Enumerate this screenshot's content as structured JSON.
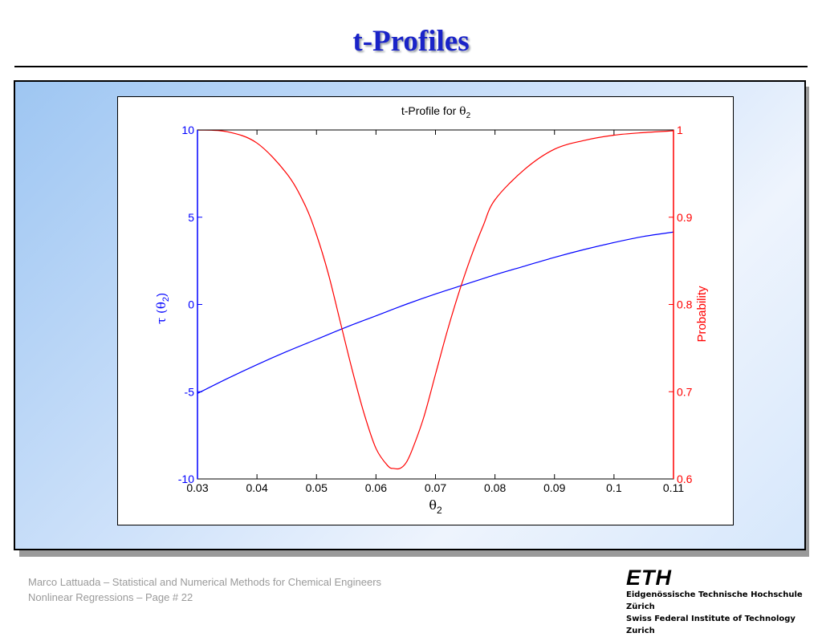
{
  "slide": {
    "title": "t-Profiles",
    "footer_line1": "Marco Lattuada – Statistical and Numerical Methods for Chemical Engineers",
    "footer_line2": "Nonlinear Regressions – Page #  22",
    "logo": {
      "mark": "ETH",
      "line1": "Eidgenössische Technische Hochschule Zürich",
      "line2": "Swiss Federal Institute of Technology Zurich"
    }
  },
  "colors": {
    "title": "#1a23c8",
    "left_axis": "#0000ff",
    "right_axis": "#ff0000"
  },
  "chart_data": {
    "type": "line",
    "title": {
      "text": "t-Profile for ",
      "symbol": "θ",
      "sub": "2"
    },
    "xlabel": {
      "symbol": "θ",
      "sub": "2"
    },
    "ylabel_left": {
      "prefix": "τ (",
      "symbol": "θ",
      "sub": "2",
      "suffix": ")"
    },
    "ylabel_right": "Probability",
    "xlim": [
      0.03,
      0.11
    ],
    "ylim_left": [
      -10,
      10
    ],
    "ylim_right": [
      0.6,
      1
    ],
    "x_ticks": [
      0.03,
      0.04,
      0.05,
      0.06,
      0.07,
      0.08,
      0.09,
      0.1,
      0.11
    ],
    "x_tick_labels": [
      "0.03",
      "0.04",
      "0.05",
      "0.06",
      "0.07",
      "0.08",
      "0.09",
      "0.1",
      "0.11"
    ],
    "y_left_ticks": [
      -10,
      -5,
      0,
      5,
      10
    ],
    "y_left_tick_labels": [
      "-10",
      "-5",
      "0",
      "5",
      "10"
    ],
    "y_right_ticks": [
      0.6,
      0.7,
      0.8,
      0.9,
      1
    ],
    "y_right_tick_labels": [
      "0.6",
      "0.7",
      "0.8",
      "0.9",
      "1"
    ],
    "grid": false,
    "legend": "none",
    "series": [
      {
        "axis": "left",
        "color": "#0000ff",
        "x": [
          0.03,
          0.035,
          0.04,
          0.045,
          0.05,
          0.055,
          0.06,
          0.065,
          0.07,
          0.075,
          0.08,
          0.085,
          0.09,
          0.095,
          0.1,
          0.105,
          0.11
        ],
        "y": [
          -5.1,
          -4.25,
          -3.45,
          -2.7,
          -2.0,
          -1.3,
          -0.65,
          0.0,
          0.6,
          1.15,
          1.7,
          2.2,
          2.7,
          3.15,
          3.55,
          3.9,
          4.15
        ]
      },
      {
        "axis": "right",
        "color": "#ff0000",
        "x": [
          0.03,
          0.035,
          0.04,
          0.045,
          0.048,
          0.05,
          0.052,
          0.054,
          0.056,
          0.058,
          0.06,
          0.062,
          0.063,
          0.064,
          0.065,
          0.066,
          0.068,
          0.07,
          0.072,
          0.074,
          0.076,
          0.078,
          0.08,
          0.085,
          0.09,
          0.095,
          0.1,
          0.105,
          0.11
        ],
        "y": [
          1.0,
          0.998,
          0.985,
          0.95,
          0.915,
          0.88,
          0.835,
          0.78,
          0.725,
          0.675,
          0.635,
          0.615,
          0.612,
          0.612,
          0.618,
          0.632,
          0.67,
          0.72,
          0.77,
          0.815,
          0.855,
          0.89,
          0.92,
          0.955,
          0.978,
          0.988,
          0.994,
          0.997,
          0.999
        ]
      }
    ]
  }
}
